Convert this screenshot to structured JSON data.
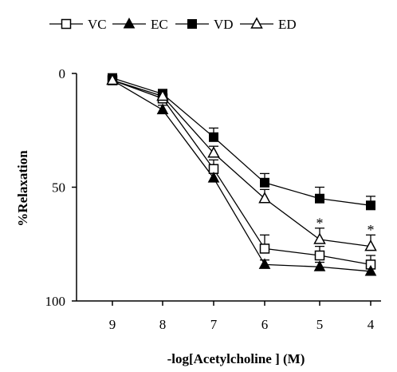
{
  "chart_data": {
    "type": "line",
    "xlabel": "-log[Acetylcholine ] (M)",
    "ylabel": "%Relaxation",
    "x": [
      9,
      8,
      7,
      6,
      5,
      4
    ],
    "x_ticks": [
      "9",
      "8",
      "7",
      "6",
      "5",
      "4"
    ],
    "y_ticks": [
      "0",
      "50",
      "100"
    ],
    "ylim": [
      0,
      100
    ],
    "y_inverted": true,
    "legend_position": "top",
    "series": [
      {
        "name": "VC",
        "marker": "open-square",
        "color": "#000000",
        "values": [
          3,
          11,
          42,
          77,
          80,
          84
        ],
        "errors": [
          1,
          2,
          4,
          6,
          4,
          4
        ]
      },
      {
        "name": "EC",
        "marker": "filled-triangle",
        "color": "#000000",
        "values": [
          3,
          16,
          46,
          84,
          85,
          87
        ],
        "errors": [
          1,
          2,
          3,
          2,
          2,
          2
        ]
      },
      {
        "name": "VD",
        "marker": "filled-square",
        "color": "#000000",
        "values": [
          2,
          9,
          28,
          48,
          55,
          58
        ],
        "errors": [
          1,
          2,
          4,
          4,
          5,
          4
        ]
      },
      {
        "name": "ED",
        "marker": "open-triangle",
        "color": "#000000",
        "values": [
          3,
          10,
          35,
          55,
          73,
          76
        ],
        "errors": [
          1,
          2,
          3,
          4,
          5,
          5
        ]
      }
    ],
    "annotations": [
      {
        "text": "*",
        "x": 5,
        "y": 65
      },
      {
        "text": "*",
        "x": 4,
        "y": 68
      }
    ]
  }
}
